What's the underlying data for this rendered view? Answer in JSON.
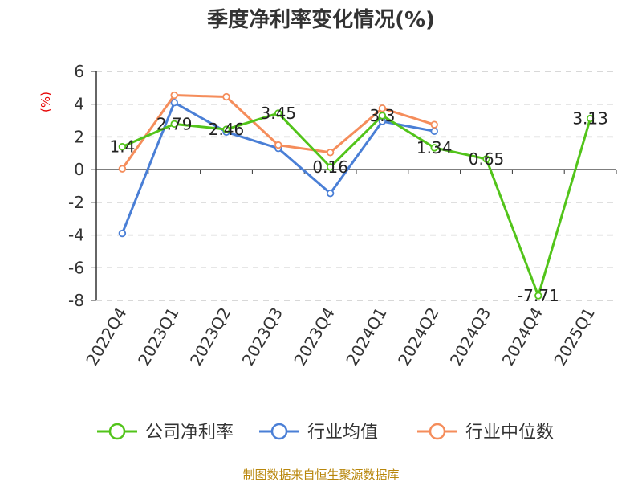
{
  "chart_data": {
    "type": "line",
    "title": "季度净利率变化情况(%)",
    "ylabel": "(%)",
    "categories": [
      "2022Q4",
      "2023Q1",
      "2023Q2",
      "2023Q3",
      "2023Q4",
      "2024Q1",
      "2024Q2",
      "2024Q3",
      "2024Q4",
      "2025Q1"
    ],
    "ylim": [
      -8,
      6
    ],
    "yticks": [
      6,
      4,
      2,
      0,
      -2,
      -4,
      -6,
      -8
    ],
    "grid": true,
    "legend_position": "bottom",
    "series": [
      {
        "name": "公司净利率",
        "color": "#52c41a",
        "labels": true,
        "values": [
          1.4,
          2.79,
          2.46,
          3.45,
          0.16,
          3.3,
          1.34,
          0.65,
          -7.71,
          3.13
        ]
      },
      {
        "name": "行业均值",
        "color": "#4a7fd6",
        "labels": false,
        "values": [
          -3.9,
          4.1,
          2.3,
          1.3,
          -1.45,
          2.95,
          2.35,
          null,
          null,
          null
        ]
      },
      {
        "name": "行业中位数",
        "color": "#f58d5b",
        "labels": false,
        "values": [
          0.05,
          4.55,
          4.45,
          1.5,
          1.05,
          3.75,
          2.75,
          null,
          null,
          null
        ]
      }
    ]
  },
  "source": "制图数据来自恒生聚源数据库"
}
